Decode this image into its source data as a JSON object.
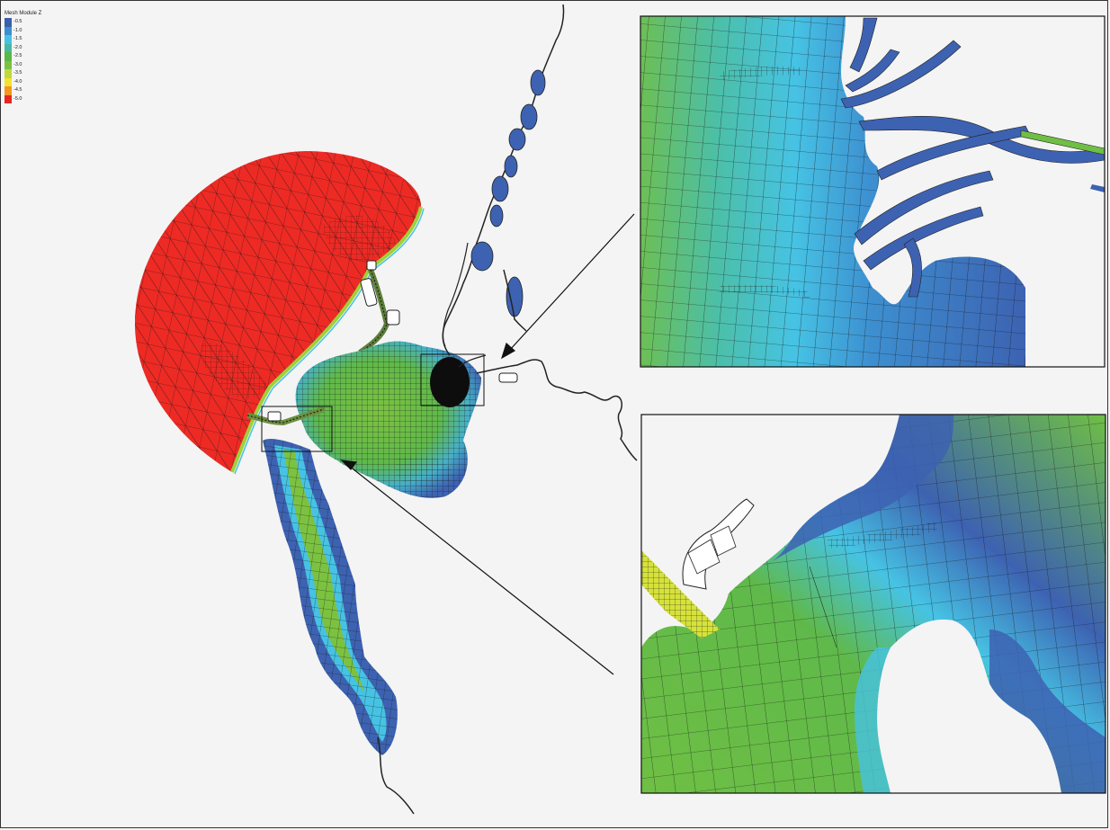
{
  "legend": {
    "title": "Mesh Module Z",
    "items": [
      {
        "label": "-0.5",
        "color": "#3a5fad"
      },
      {
        "label": "-1.0",
        "color": "#3c8fcf"
      },
      {
        "label": "-1.5",
        "color": "#46c3e4"
      },
      {
        "label": "-2.0",
        "color": "#47b9a0"
      },
      {
        "label": "-2.5",
        "color": "#58b848"
      },
      {
        "label": "-3.0",
        "color": "#7cc241"
      },
      {
        "label": "-3.5",
        "color": "#bdd93c"
      },
      {
        "label": "-4.0",
        "color": "#f2e42e"
      },
      {
        "label": "-4.5",
        "color": "#f5961e"
      },
      {
        "label": "-5.0",
        "color": "#e8251f"
      }
    ]
  },
  "colors": {
    "red_zone": "#ee2a24",
    "deep_blue": "#3d62b1",
    "mid_blue": "#3d8fd0",
    "cyan": "#46c3e4",
    "green": "#6fbf44",
    "yellow_green": "#c9dc3a",
    "mesh_line": "#1a1a1a"
  }
}
